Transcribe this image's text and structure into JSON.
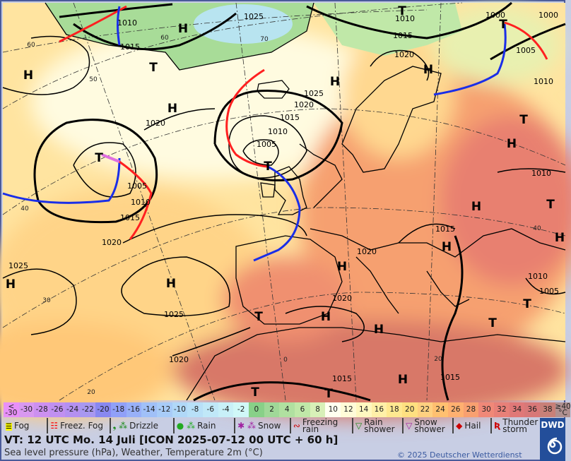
{
  "map": {
    "pressure_labels": [
      "1010",
      "1025",
      "1010",
      "1000",
      "1000",
      "1015",
      "1015",
      "1020",
      "1005",
      "1010",
      "1025",
      "1020",
      "1015",
      "1010",
      "1005",
      "1020",
      "1005",
      "1010",
      "1015",
      "1020",
      "1010",
      "1015",
      "1020",
      "1025",
      "1020",
      "1025",
      "1010",
      "1005",
      "1020",
      "1015",
      "1015"
    ],
    "high_labels": [
      "H",
      "H",
      "H",
      "H",
      "H",
      "H",
      "H",
      "H",
      "H",
      "H",
      "H",
      "H",
      "H",
      "H",
      "H"
    ],
    "low_labels": [
      "T",
      "T",
      "T",
      "T",
      "T",
      "T",
      "T",
      "T",
      "T",
      "T",
      "T",
      "T"
    ],
    "grid_labels": [
      "60",
      "50",
      "60",
      "70",
      "40",
      "30",
      "20",
      "0",
      "40",
      "20"
    ],
    "colors": {
      "front_cold": "#1a2ee8",
      "front_warm": "#ff2020",
      "occlusion": "#e070e0",
      "isobar": "#000000"
    }
  },
  "temperature_scale": [
    {
      "label": "< -30",
      "color": "#e890f8"
    },
    {
      "label": "-30",
      "color": "#d898f0"
    },
    {
      "label": "-28",
      "color": "#cc90f0"
    },
    {
      "label": "-26",
      "color": "#c090f0"
    },
    {
      "label": "-24",
      "color": "#b490f0"
    },
    {
      "label": "-22",
      "color": "#a898f0"
    },
    {
      "label": "-20",
      "color": "#8888f0"
    },
    {
      "label": "-18",
      "color": "#90a0f8"
    },
    {
      "label": "-16",
      "color": "#98b0f8"
    },
    {
      "label": "-14",
      "color": "#a0c0f8"
    },
    {
      "label": "-12",
      "color": "#a8ccf8"
    },
    {
      "label": "-10",
      "color": "#b0d8f8"
    },
    {
      "label": "-8",
      "color": "#b8e0f8"
    },
    {
      "label": "-6",
      "color": "#c0e8f8"
    },
    {
      "label": "-4",
      "color": "#c8f0f8"
    },
    {
      "label": "-2",
      "color": "#d0f8f8"
    },
    {
      "label": "0",
      "color": "#88d088"
    },
    {
      "label": "2",
      "color": "#a0d898"
    },
    {
      "label": "4",
      "color": "#b0e0a0"
    },
    {
      "label": "6",
      "color": "#c0e8a8"
    },
    {
      "label": "8",
      "color": "#d8f0b8"
    },
    {
      "label": "10",
      "color": "#fffff0"
    },
    {
      "label": "12",
      "color": "#fffcd8"
    },
    {
      "label": "14",
      "color": "#fff8c0"
    },
    {
      "label": "16",
      "color": "#fff0a8"
    },
    {
      "label": "18",
      "color": "#ffe890"
    },
    {
      "label": "20",
      "color": "#ffe080"
    },
    {
      "label": "22",
      "color": "#ffd080"
    },
    {
      "label": "24",
      "color": "#ffc070"
    },
    {
      "label": "26",
      "color": "#ffb070"
    },
    {
      "label": "28",
      "color": "#f8a070"
    },
    {
      "label": "30",
      "color": "#f08878"
    },
    {
      "label": "32",
      "color": "#e88078"
    },
    {
      "label": "34",
      "color": "#e07878"
    },
    {
      "label": "36",
      "color": "#d87878"
    },
    {
      "label": "38",
      "color": "#c88078"
    },
    {
      "label": "≥40 °C",
      "color": "#b09090"
    }
  ],
  "legend": [
    {
      "label": "Fog",
      "icon": "fog-icon"
    },
    {
      "label": "Freez. Fog",
      "icon": "freezing-fog-icon"
    },
    {
      "label": "Drizzle",
      "icon": "drizzle-icon"
    },
    {
      "label": "Rain",
      "icon": "rain-icon"
    },
    {
      "label": "Snow",
      "icon": "snow-icon"
    },
    {
      "label": "Freezing rain",
      "icon": "freezing-rain-icon"
    },
    {
      "label": "Rain shower",
      "icon": "rain-shower-icon"
    },
    {
      "label": "Snow shower",
      "icon": "snow-shower-icon"
    },
    {
      "label": "Hail",
      "icon": "hail-icon"
    },
    {
      "label": "Thunder storm",
      "icon": "thunderstorm-icon"
    }
  ],
  "footer": {
    "valid_time": "VT: 12 UTC Mo.  14 Juli [ICON 2025-07-12  00 UTC + 60 h]",
    "description": "Sea level pressure (hPa), Weather, Temperature 2m (°C)",
    "copyright": "© 2025 Deutscher Wetterdienst",
    "logo_text": "DWD"
  }
}
